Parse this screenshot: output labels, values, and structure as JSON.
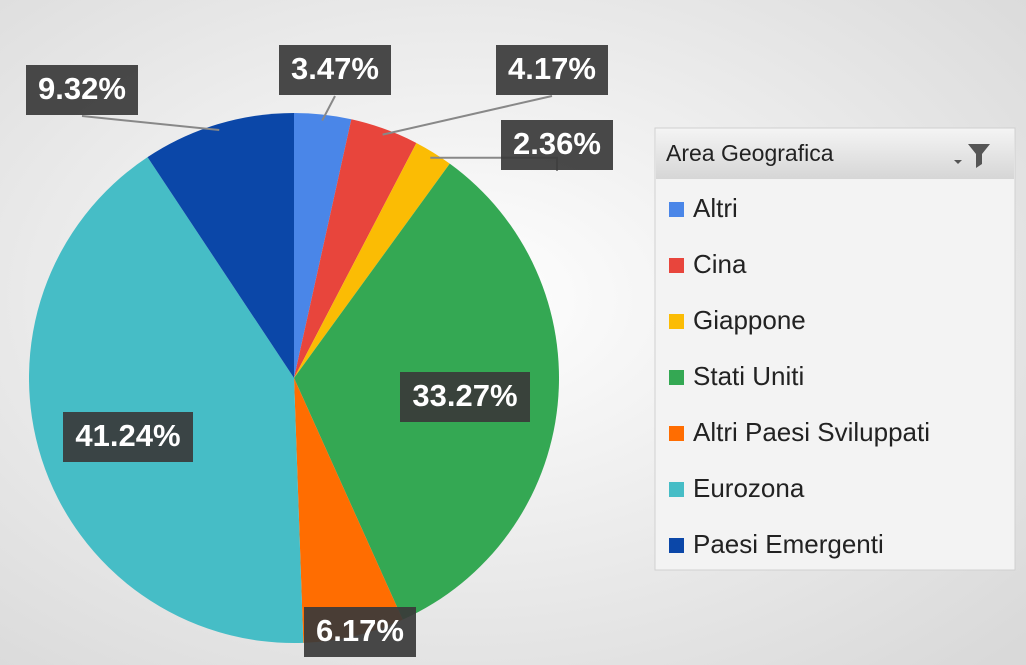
{
  "chart_data": {
    "type": "pie",
    "categories": [
      "Altri",
      "Cina",
      "Giappone",
      "Stati Uniti",
      "Altri Paesi Sviluppati",
      "Eurozona",
      "Paesi Emergenti"
    ],
    "values": [
      3.47,
      4.17,
      2.36,
      33.27,
      6.17,
      41.24,
      9.32
    ],
    "value_labels": [
      "3.47%",
      "4.17%",
      "2.36%",
      "33.27%",
      "6.17%",
      "41.24%",
      "9.32%"
    ],
    "colors": [
      "#4a86e8",
      "#e8453c",
      "#fbbc04",
      "#34a853",
      "#ff6d01",
      "#46bdc6",
      "#0b47a8"
    ],
    "legend_title": "Area Geografica",
    "legend": "right"
  }
}
